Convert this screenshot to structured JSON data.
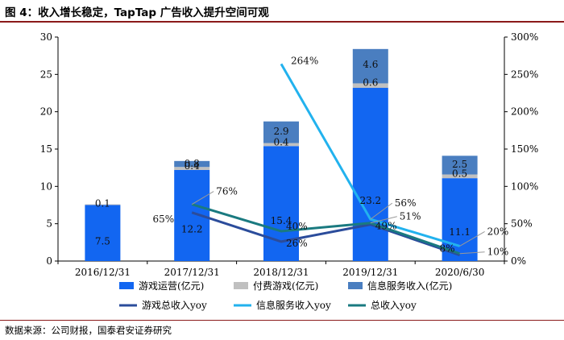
{
  "figure_title": "图 4：收入增长稳定，TapTap 广告收入提升空间可观",
  "source": "数据来源：公司财报，国泰君安证券研究",
  "chart_data": {
    "type": "bar",
    "stacked": true,
    "categories": [
      "2016/12/31",
      "2017/12/31",
      "2018/12/31",
      "2019/12/31",
      "2020/6/30"
    ],
    "y_left": {
      "min": 0,
      "max": 30,
      "ticks": [
        "0",
        "5",
        "10",
        "15",
        "20",
        "25",
        "30"
      ]
    },
    "y_right": {
      "min": 0,
      "max": 300,
      "ticks": [
        "0%",
        "50%",
        "100%",
        "150%",
        "200%",
        "250%",
        "300%"
      ]
    },
    "bar_series": [
      {
        "name": "游戏运营(亿元)",
        "color": "#1266F1",
        "values": [
          7.5,
          12.2,
          15.4,
          23.2,
          11.1
        ],
        "labels": [
          "7.5",
          "12.2",
          "15.4",
          "23.2",
          "11.1"
        ]
      },
      {
        "name": "付费游戏(亿元)",
        "color": "#C0C0C0",
        "values": [
          0.1,
          0.4,
          0.4,
          0.6,
          0.5
        ],
        "labels": [
          "0.1",
          "0.4",
          "0.4",
          "0.6",
          "0.5"
        ]
      },
      {
        "name": "信息服务收入(亿元)",
        "color": "#4A7EC0",
        "values": [
          0,
          0.8,
          2.9,
          4.6,
          2.5
        ],
        "labels": [
          "",
          "0.8",
          "2.9",
          "4.6",
          "2.5"
        ]
      }
    ],
    "line_series": [
      {
        "name": "游戏总收入yoy",
        "color": "#2B4C9B",
        "values": [
          null,
          65,
          26,
          49,
          8
        ],
        "labels": [
          "",
          "65%",
          "26%",
          "49%",
          "8%"
        ]
      },
      {
        "name": "信息服务收入yoy",
        "color": "#22B2EE",
        "values": [
          null,
          null,
          264,
          56,
          20
        ],
        "labels": [
          "",
          "",
          "264%",
          "56%",
          "20%"
        ]
      },
      {
        "name": "总收入yoy",
        "color": "#1A7A80",
        "values": [
          null,
          76,
          40,
          51,
          10
        ],
        "labels": [
          "",
          "76%",
          "40%",
          "51%",
          "10%"
        ]
      }
    ]
  }
}
